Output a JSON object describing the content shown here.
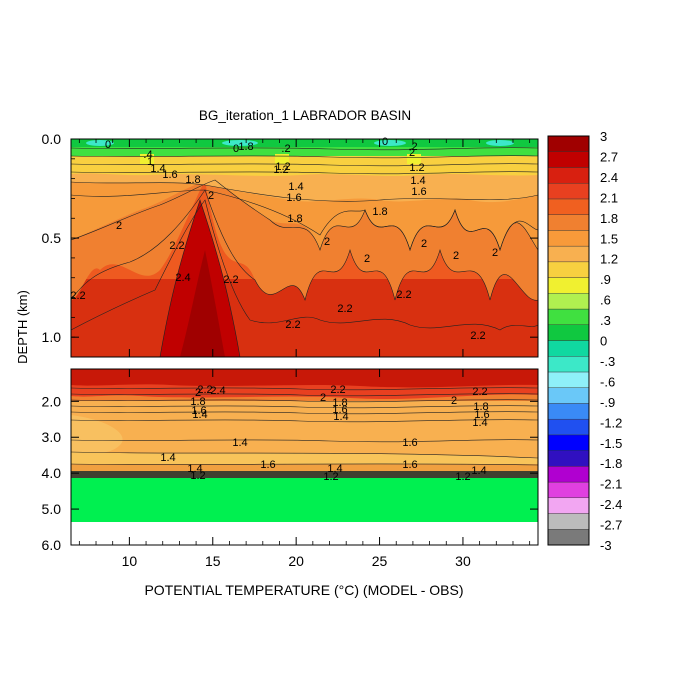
{
  "chart_data": {
    "type": "heatmap",
    "title": "BG_iteration_1 LABRADOR BASIN",
    "xlabel": "POTENTIAL TEMPERATURE (°C) (MODEL - OBS)",
    "ylabel": "DEPTH (km)",
    "x_ticks": [
      "10",
      "15",
      "20",
      "25",
      "30"
    ],
    "xlim": [
      6.5,
      34.5
    ],
    "upper_panel": {
      "y_ticks": [
        "0.0",
        "0.5",
        "1.0"
      ],
      "ylim": [
        0.0,
        1.1
      ]
    },
    "lower_panel": {
      "y_ticks": [
        "2.0",
        "3.0",
        "4.0",
        "5.0",
        "6.0"
      ],
      "ylim": [
        1.1,
        6.0
      ]
    },
    "colorbar": {
      "labels": [
        "3",
        "2.7",
        "2.4",
        "2.1",
        "1.8",
        "1.5",
        "1.2",
        ".9",
        ".6",
        ".3",
        "0",
        "-.3",
        "-.6",
        "-.9",
        "-1.2",
        "-1.5",
        "-1.8",
        "-2.1",
        "-2.4",
        "-2.7",
        "-3"
      ],
      "range": [
        -3,
        3
      ],
      "colors": [
        "#7a7a7a",
        "#bcbcbc",
        "#f2a6f2",
        "#e040e0",
        "#b000d0",
        "#3010c0",
        "#0000ff",
        "#2050f0",
        "#3a8af5",
        "#6ac8f8",
        "#8ff0f8",
        "#3ce8c8",
        "#10d8a0",
        "#10c840",
        "#40e040",
        "#b0f050",
        "#f0f030",
        "#f8d040",
        "#f8b050",
        "#f89a3a",
        "#f08030",
        "#f06020",
        "#e84020",
        "#d82010",
        "#c00000",
        "#a00000"
      ]
    },
    "upper_contour_labels": [
      "0",
      "0",
      "0",
      ".2",
      ".2",
      ".4",
      "1",
      "1.2",
      "1.2",
      "1.2",
      "1.4",
      "1.4",
      "1.4",
      "1.6",
      "1.6",
      "1.6",
      "1.8",
      "1.8",
      "1.8",
      "1.8",
      "2",
      "2",
      "2",
      "2",
      "2",
      "2",
      "2",
      "2",
      "2.2",
      "2.2",
      "2.2",
      "2.2",
      "2.2",
      "2.2",
      "2.2",
      "2.4"
    ],
    "lower_contour_labels": [
      "2",
      "2",
      "2",
      "2.2",
      "2.2",
      "2.2",
      "2.4",
      "1.8",
      "1.8",
      "1.8",
      "1.6",
      "1.6",
      "1.6",
      "1.4",
      "1.4",
      "1.4",
      "1.4",
      "1.4",
      "1.6",
      "1.6",
      "1.6",
      "1.2",
      "1.2",
      "1.2",
      "1.4",
      "1.4",
      "1.4"
    ]
  }
}
